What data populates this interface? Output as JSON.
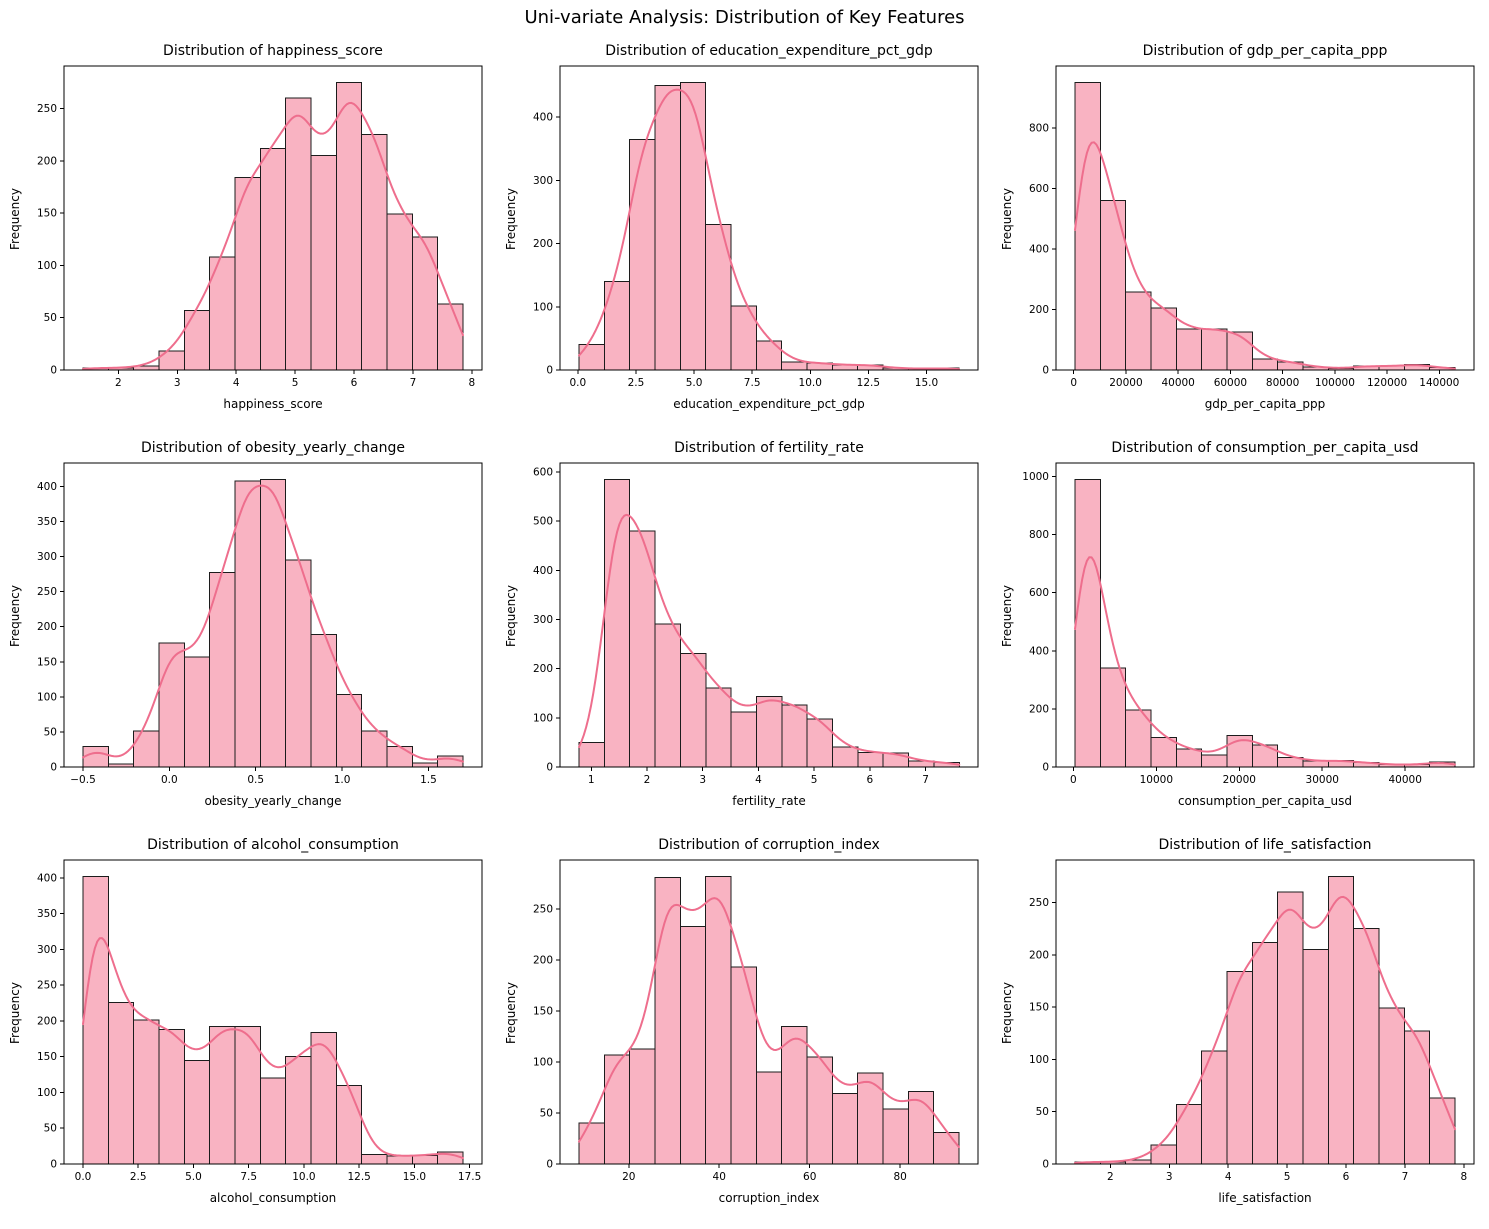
{
  "suptitle": "Uni-variate Analysis: Distribution of Key Features",
  "style": {
    "bar_fill": "#f9b3c2",
    "bar_edge": "#1c1c1c",
    "kde_color": "#ee6e8d",
    "axis_color": "#000000",
    "background": "#ffffff"
  },
  "chart_data": [
    {
      "type": "histogram",
      "kde": true,
      "title": "Distribution of happiness_score",
      "xlabel": "happiness_score",
      "ylabel": "Frequency",
      "bin_start": 1.4,
      "bin_width": 0.43,
      "values": [
        2,
        2,
        4,
        18,
        57,
        108,
        184,
        212,
        260,
        205,
        275,
        225,
        149,
        127,
        63
      ],
      "xticks": [
        2,
        3,
        4,
        5,
        6,
        7,
        8
      ],
      "xtick_labels": [
        "2",
        "3",
        "4",
        "5",
        "6",
        "7",
        "8"
      ],
      "yticks": [
        0,
        50,
        100,
        150,
        200,
        250
      ],
      "xlim": [
        1.0775,
        8.1725
      ],
      "ylim": [
        0,
        288.75
      ]
    },
    {
      "type": "histogram",
      "kde": true,
      "title": "Distribution of education_expenditure_pct_gdp",
      "xlabel": "education_expenditure_pct_gdp",
      "ylabel": "Frequency",
      "bin_start": 0.05,
      "bin_width": 1.09,
      "values": [
        40,
        140,
        365,
        450,
        455,
        230,
        101,
        46,
        13,
        11,
        8,
        8,
        3,
        2,
        3
      ],
      "xticks": [
        0,
        2.5,
        5,
        7.5,
        10,
        12.5,
        15
      ],
      "xtick_labels": [
        "0.0",
        "2.5",
        "5.0",
        "7.5",
        "10.0",
        "12.5",
        "15.0"
      ],
      "yticks": [
        0,
        100,
        200,
        300,
        400
      ],
      "xlim": [
        -0.7675,
        17.2175
      ],
      "ylim": [
        0,
        477.75
      ]
    },
    {
      "type": "histogram",
      "kde": true,
      "title": "Distribution of gdp_per_capita_ppp",
      "xlabel": "gdp_per_capita_ppp",
      "ylabel": "Frequency",
      "bin_start": 500,
      "bin_width": 9700,
      "values": [
        950,
        560,
        258,
        205,
        135,
        135,
        125,
        37,
        27,
        10,
        5,
        13,
        13,
        18,
        8
      ],
      "xticks": [
        0,
        20000,
        40000,
        60000,
        80000,
        100000,
        120000,
        140000
      ],
      "xtick_labels": [
        "0",
        "20000",
        "40000",
        "60000",
        "80000",
        "100000",
        "120000",
        "140000"
      ],
      "yticks": [
        0,
        200,
        400,
        600,
        800
      ],
      "xlim": [
        -6775,
        153275
      ],
      "ylim": [
        0,
        997.5
      ]
    },
    {
      "type": "histogram",
      "kde": true,
      "title": "Distribution of obesity_yearly_change",
      "xlabel": "obesity_yearly_change",
      "ylabel": "Frequency",
      "bin_start": -0.5,
      "bin_width": 0.14667,
      "values": [
        29,
        4,
        51,
        177,
        157,
        277,
        408,
        410,
        295,
        189,
        103,
        51,
        29,
        6,
        16
      ],
      "xticks": [
        -0.5,
        0.0,
        0.5,
        1.0,
        1.5
      ],
      "xtick_labels": [
        "−0.5",
        "0.0",
        "0.5",
        "1.0",
        "1.5"
      ],
      "yticks": [
        0,
        50,
        100,
        150,
        200,
        250,
        300,
        350,
        400
      ],
      "xlim": [
        -0.61,
        1.81
      ],
      "ylim": [
        0,
        430.5
      ]
    },
    {
      "type": "histogram",
      "kde": true,
      "title": "Distribution of fertility_rate",
      "xlabel": "fertility_rate",
      "ylabel": "Frequency",
      "bin_start": 0.78,
      "bin_width": 0.455,
      "values": [
        50,
        585,
        480,
        291,
        231,
        161,
        112,
        143,
        126,
        98,
        41,
        30,
        28,
        12,
        9
      ],
      "xticks": [
        1,
        2,
        3,
        4,
        5,
        6,
        7
      ],
      "xtick_labels": [
        "1",
        "2",
        "3",
        "4",
        "5",
        "6",
        "7"
      ],
      "yticks": [
        0,
        100,
        200,
        300,
        400,
        500,
        600
      ],
      "xlim": [
        0.439,
        7.941
      ],
      "ylim": [
        0,
        614.25
      ]
    },
    {
      "type": "histogram",
      "kde": true,
      "title": "Distribution of consumption_per_capita_usd",
      "xlabel": "consumption_per_capita_usd",
      "ylabel": "Frequency",
      "bin_start": 200,
      "bin_width": 3053,
      "values": [
        990,
        340,
        197,
        101,
        62,
        41,
        108,
        75,
        33,
        20,
        22,
        15,
        8,
        8,
        18
      ],
      "xticks": [
        0,
        10000,
        20000,
        30000,
        40000
      ],
      "xtick_labels": [
        "0",
        "10000",
        "20000",
        "30000",
        "40000"
      ],
      "yticks": [
        0,
        200,
        400,
        600,
        800,
        1000
      ],
      "xlim": [
        -2090,
        48290
      ],
      "ylim": [
        0,
        1039.5
      ]
    },
    {
      "type": "histogram",
      "kde": true,
      "title": "Distribution of alcohol_consumption",
      "xlabel": "alcohol_consumption",
      "ylabel": "Frequency",
      "bin_start": 0.0,
      "bin_width": 1.1467,
      "values": [
        402,
        226,
        201,
        188,
        145,
        192,
        192,
        120,
        150,
        184,
        110,
        13,
        11,
        12,
        17
      ],
      "xticks": [
        0,
        2.5,
        5,
        7.5,
        10,
        12.5,
        15,
        17.5
      ],
      "xtick_labels": [
        "0.0",
        "2.5",
        "5.0",
        "7.5",
        "10.0",
        "12.5",
        "15.0",
        "17.5"
      ],
      "yticks": [
        0,
        50,
        100,
        150,
        200,
        250,
        300,
        350,
        400
      ],
      "xlim": [
        -0.86,
        18.06
      ],
      "ylim": [
        0,
        422.1
      ]
    },
    {
      "type": "histogram",
      "kde": true,
      "title": "Distribution of corruption_index",
      "xlabel": "corruption_index",
      "ylabel": "Frequency",
      "bin_start": 9,
      "bin_width": 5.6,
      "values": [
        40,
        107,
        113,
        281,
        233,
        282,
        193,
        90,
        135,
        105,
        69,
        89,
        54,
        71,
        31
      ],
      "xticks": [
        20,
        40,
        60,
        80
      ],
      "xtick_labels": [
        "20",
        "40",
        "60",
        "80"
      ],
      "yticks": [
        0,
        50,
        100,
        150,
        200,
        250
      ],
      "xlim": [
        4.8,
        97.2
      ],
      "ylim": [
        0,
        296.1
      ]
    },
    {
      "type": "histogram",
      "kde": true,
      "title": "Distribution of life_satisfaction",
      "xlabel": "life_satisfaction",
      "ylabel": "Frequency",
      "bin_start": 1.4,
      "bin_width": 0.43,
      "values": [
        2,
        2,
        4,
        18,
        57,
        108,
        184,
        212,
        260,
        205,
        275,
        225,
        149,
        127,
        63
      ],
      "xticks": [
        2,
        3,
        4,
        5,
        6,
        7,
        8
      ],
      "xtick_labels": [
        "2",
        "3",
        "4",
        "5",
        "6",
        "7",
        "8"
      ],
      "yticks": [
        0,
        50,
        100,
        150,
        200,
        250
      ],
      "xlim": [
        1.0775,
        8.1725
      ],
      "ylim": [
        0,
        288.75
      ]
    }
  ]
}
